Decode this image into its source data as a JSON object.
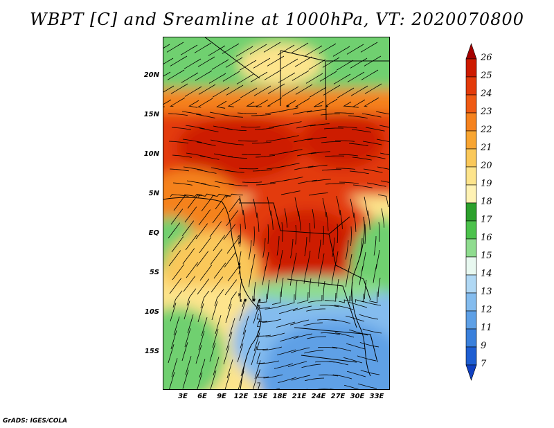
{
  "title": "WBPT [C] and Sreamline at 1000hPa, VT: 2020070800",
  "footer": "GrADS: IGES/COLA",
  "lat_ticks": [
    "20N",
    "15N",
    "10N",
    "5N",
    "EQ",
    "5S",
    "10S",
    "15S"
  ],
  "lon_ticks": [
    "3E",
    "6E",
    "9E",
    "12E",
    "15E",
    "18E",
    "21E",
    "24E",
    "27E",
    "30E",
    "33E"
  ],
  "colorbar": {
    "labels": [
      "26",
      "25",
      "24",
      "23",
      "22",
      "21",
      "20",
      "19",
      "18",
      "17",
      "16",
      "15",
      "14",
      "13",
      "12",
      "11",
      "9",
      "7"
    ],
    "colors": [
      "#a50000",
      "#cd1a00",
      "#e33a0a",
      "#ef5a14",
      "#f5821e",
      "#f8a532",
      "#fac85a",
      "#fde48c",
      "#fff2b4",
      "#2ca02c",
      "#4cc24c",
      "#8fdc8f",
      "#e8f8f0",
      "#b0d8f4",
      "#84bcee",
      "#5ea0e6",
      "#3a80dc",
      "#1e5ed2",
      "#1040c0"
    ]
  }
}
